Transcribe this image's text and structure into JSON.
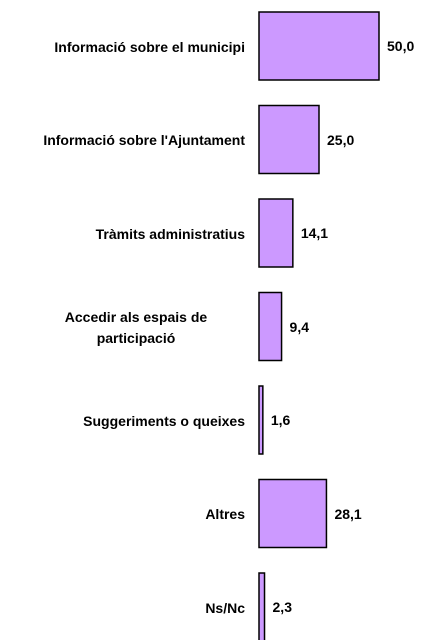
{
  "chart_data": {
    "type": "bar",
    "orientation": "horizontal",
    "categories": [
      "Informació sobre el municipi",
      "Informació sobre l'Ajuntament",
      "Tràmits administratius",
      "Accedir als espais de participació",
      "Suggeriments o queixes",
      "Altres",
      "Ns/Nc"
    ],
    "values": [
      50.0,
      25.0,
      14.1,
      9.4,
      1.6,
      28.1,
      2.3
    ],
    "value_labels": [
      "50,0",
      "25,0",
      "14,1",
      "9,4",
      "1,6",
      "28,1",
      "2,3"
    ],
    "color": "#cc99ff"
  }
}
